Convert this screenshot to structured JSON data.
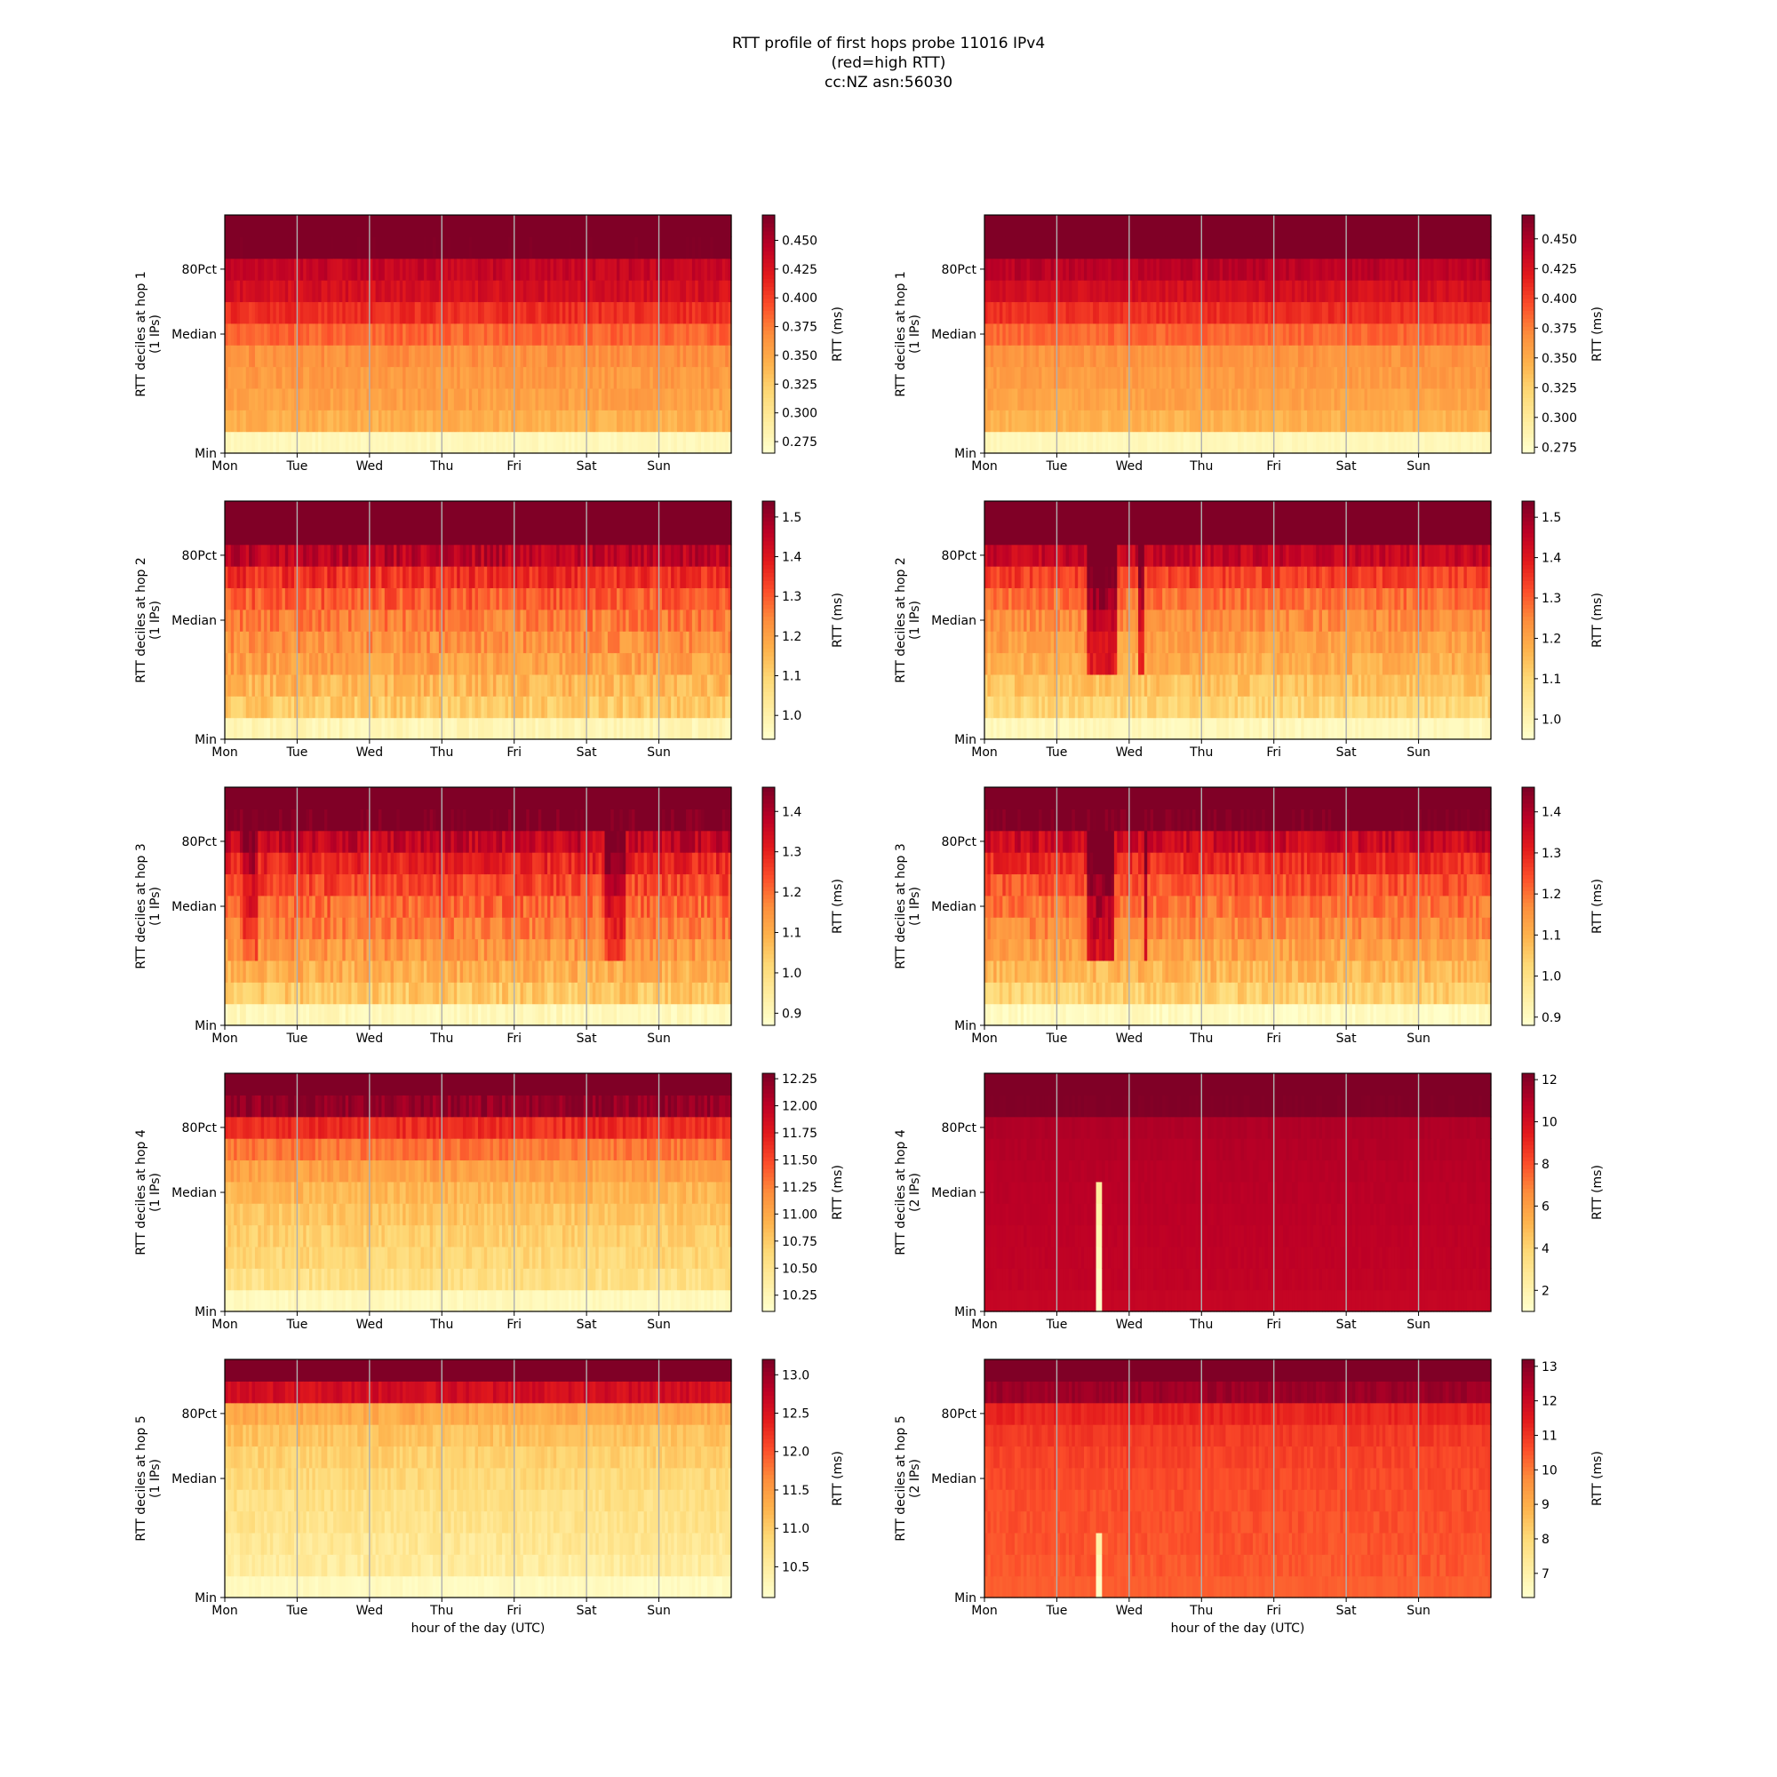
{
  "title": {
    "line1": "RTT profile of first hops probe 11016 IPv4",
    "line2": "(red=high RTT)",
    "line3": "cc:NZ asn:56030"
  },
  "colors": {
    "ylorrd": [
      "#ffffcc",
      "#ffeda0",
      "#fed976",
      "#feb24c",
      "#fd8d3c",
      "#fc4e2a",
      "#e31a1c",
      "#bd0026",
      "#800026"
    ],
    "gridline": "#b0b0b0",
    "frame": "#000000"
  },
  "chart_data": [
    {
      "type": "heatmap",
      "column": "left",
      "row": 0,
      "ylabel": "RTT deciles at hop 1",
      "ylabel2": "(1 IPs)",
      "xticks": [
        "Mon",
        "Tue",
        "Wed",
        "Thu",
        "Fri",
        "Sat",
        "Sun"
      ],
      "yticks": [
        "80Pct",
        "Median",
        "Min"
      ],
      "xlabel": "",
      "colorbar": {
        "label": "RTT (ms)",
        "vmin": 0.265,
        "vmax": 0.472,
        "ticks": [
          "0.275",
          "0.300",
          "0.325",
          "0.350",
          "0.375",
          "0.400",
          "0.425",
          "0.450"
        ]
      },
      "decile_rtt_ms": [
        0.275,
        0.345,
        0.355,
        0.36,
        0.365,
        0.385,
        0.41,
        0.43,
        0.44,
        0.48,
        0.49
      ],
      "noise": 0.01,
      "events": []
    },
    {
      "type": "heatmap",
      "column": "right",
      "row": 0,
      "ylabel": "RTT deciles at hop 1",
      "ylabel2": "(1 IPs)",
      "xticks": [
        "Mon",
        "Tue",
        "Wed",
        "Thu",
        "Fri",
        "Sat",
        "Sun"
      ],
      "yticks": [
        "80Pct",
        "Median",
        "Min"
      ],
      "xlabel": "",
      "colorbar": {
        "label": "RTT (ms)",
        "vmin": 0.27,
        "vmax": 0.47,
        "ticks": [
          "0.275",
          "0.300",
          "0.325",
          "0.350",
          "0.375",
          "0.400",
          "0.425",
          "0.450"
        ]
      },
      "decile_rtt_ms": [
        0.28,
        0.345,
        0.355,
        0.36,
        0.365,
        0.385,
        0.41,
        0.43,
        0.445,
        0.48,
        0.49
      ],
      "noise": 0.008,
      "events": []
    },
    {
      "type": "heatmap",
      "column": "left",
      "row": 1,
      "ylabel": "RTT deciles at hop 2",
      "ylabel2": "(1 IPs)",
      "xticks": [
        "Mon",
        "Tue",
        "Wed",
        "Thu",
        "Fri",
        "Sat",
        "Sun"
      ],
      "yticks": [
        "80Pct",
        "Median",
        "Min"
      ],
      "xlabel": "",
      "colorbar": {
        "label": "RTT (ms)",
        "vmin": 0.94,
        "vmax": 1.54,
        "ticks": [
          "1.0",
          "1.1",
          "1.2",
          "1.3",
          "1.4",
          "1.5"
        ]
      },
      "decile_rtt_ms": [
        0.98,
        1.12,
        1.16,
        1.2,
        1.23,
        1.26,
        1.3,
        1.36,
        1.46,
        1.6,
        1.62
      ],
      "noise": 0.05,
      "events": []
    },
    {
      "type": "heatmap",
      "column": "right",
      "row": 1,
      "ylabel": "RTT deciles at hop 2",
      "ylabel2": "(1 IPs)",
      "xticks": [
        "Mon",
        "Tue",
        "Wed",
        "Thu",
        "Fri",
        "Sat",
        "Sun"
      ],
      "yticks": [
        "80Pct",
        "Median",
        "Min"
      ],
      "xlabel": "",
      "colorbar": {
        "label": "RTT (ms)",
        "vmin": 0.95,
        "vmax": 1.54,
        "ticks": [
          "1.0",
          "1.1",
          "1.2",
          "1.3",
          "1.4",
          "1.5"
        ]
      },
      "decile_rtt_ms": [
        0.98,
        1.1,
        1.14,
        1.18,
        1.21,
        1.24,
        1.28,
        1.34,
        1.45,
        1.6,
        1.62
      ],
      "noise": 0.04,
      "events": [
        {
          "start": 0.2,
          "end": 0.26,
          "boost": 0.22
        },
        {
          "start": 0.3,
          "end": 0.31,
          "boost": 0.2
        }
      ]
    },
    {
      "type": "heatmap",
      "column": "left",
      "row": 2,
      "ylabel": "RTT deciles at hop 3",
      "ylabel2": "(1 IPs)",
      "xticks": [
        "Mon",
        "Tue",
        "Wed",
        "Thu",
        "Fri",
        "Sat",
        "Sun"
      ],
      "yticks": [
        "80Pct",
        "Median",
        "Min"
      ],
      "xlabel": "",
      "colorbar": {
        "label": "RTT (ms)",
        "vmin": 0.87,
        "vmax": 1.46,
        "ticks": [
          "0.9",
          "1.0",
          "1.1",
          "1.2",
          "1.3",
          "1.4"
        ]
      },
      "decile_rtt_ms": [
        0.9,
        1.05,
        1.1,
        1.14,
        1.18,
        1.21,
        1.25,
        1.3,
        1.37,
        1.48,
        1.52
      ],
      "noise": 0.05,
      "events": [
        {
          "start": 0.03,
          "end": 0.06,
          "boost": 0.1
        },
        {
          "start": 0.75,
          "end": 0.79,
          "boost": 0.12
        }
      ]
    },
    {
      "type": "heatmap",
      "column": "right",
      "row": 2,
      "ylabel": "RTT deciles at hop 3",
      "ylabel2": "(1 IPs)",
      "xticks": [
        "Mon",
        "Tue",
        "Wed",
        "Thu",
        "Fri",
        "Sat",
        "Sun"
      ],
      "yticks": [
        "80Pct",
        "Median",
        "Min"
      ],
      "xlabel": "",
      "colorbar": {
        "label": "RTT (ms)",
        "vmin": 0.88,
        "vmax": 1.46,
        "ticks": [
          "0.9",
          "1.0",
          "1.1",
          "1.2",
          "1.3",
          "1.4"
        ]
      },
      "decile_rtt_ms": [
        0.9,
        1.04,
        1.09,
        1.13,
        1.17,
        1.2,
        1.24,
        1.29,
        1.36,
        1.48,
        1.52
      ],
      "noise": 0.045,
      "events": [
        {
          "start": 0.2,
          "end": 0.25,
          "boost": 0.2
        },
        {
          "start": 0.31,
          "end": 0.32,
          "boost": 0.18
        }
      ]
    },
    {
      "type": "heatmap",
      "column": "left",
      "row": 3,
      "ylabel": "RTT deciles at hop 4",
      "ylabel2": "(1 IPs)",
      "xticks": [
        "Mon",
        "Tue",
        "Wed",
        "Thu",
        "Fri",
        "Sat",
        "Sun"
      ],
      "yticks": [
        "80Pct",
        "Median",
        "Min"
      ],
      "xlabel": "",
      "colorbar": {
        "label": "RTT (ms)",
        "vmin": 10.1,
        "vmax": 12.3,
        "ticks": [
          "10.25",
          "10.50",
          "10.75",
          "11.00",
          "11.25",
          "11.50",
          "11.75",
          "12.00",
          "12.25"
        ]
      },
      "decile_rtt_ms": [
        10.2,
        10.55,
        10.65,
        10.72,
        10.8,
        10.9,
        11.05,
        11.3,
        11.65,
        12.2,
        12.4
      ],
      "noise": 0.12,
      "events": []
    },
    {
      "type": "heatmap",
      "column": "right",
      "row": 3,
      "ylabel": "RTT deciles at hop 4",
      "ylabel2": "(2 IPs)",
      "xticks": [
        "Mon",
        "Tue",
        "Wed",
        "Thu",
        "Fri",
        "Sat",
        "Sun"
      ],
      "yticks": [
        "80Pct",
        "Median",
        "Min"
      ],
      "xlabel": "",
      "colorbar": {
        "label": "RTT (ms)",
        "vmin": 1.0,
        "vmax": 12.3,
        "ticks": [
          "2",
          "4",
          "6",
          "8",
          "10",
          "12"
        ]
      },
      "decile_rtt_ms": [
        10.6,
        10.75,
        10.8,
        10.85,
        10.9,
        10.95,
        11.0,
        11.1,
        11.2,
        12.3,
        12.5
      ],
      "noise": 0.1,
      "events": [],
      "drop": {
        "start": 0.215,
        "end": 0.228,
        "level": 1.0,
        "rows": 6
      }
    },
    {
      "type": "heatmap",
      "column": "left",
      "row": 4,
      "ylabel": "RTT deciles at hop 5",
      "ylabel2": "(1 IPs)",
      "xticks": [
        "Mon",
        "Tue",
        "Wed",
        "Thu",
        "Fri",
        "Sat",
        "Sun"
      ],
      "yticks": [
        "80Pct",
        "Median",
        "Min"
      ],
      "xlabel": "hour of the day (UTC)",
      "colorbar": {
        "label": "RTT (ms)",
        "vmin": 10.1,
        "vmax": 13.2,
        "ticks": [
          "10.5",
          "11.0",
          "11.5",
          "12.0",
          "12.5",
          "13.0"
        ]
      },
      "decile_rtt_ms": [
        10.2,
        10.5,
        10.6,
        10.68,
        10.75,
        10.85,
        10.95,
        11.1,
        11.35,
        12.6,
        13.3
      ],
      "noise": 0.15,
      "events": []
    },
    {
      "type": "heatmap",
      "column": "right",
      "row": 4,
      "ylabel": "RTT deciles at hop 5",
      "ylabel2": "(2 IPs)",
      "xticks": [
        "Mon",
        "Tue",
        "Wed",
        "Thu",
        "Fri",
        "Sat",
        "Sun"
      ],
      "yticks": [
        "80Pct",
        "Median",
        "Min"
      ],
      "xlabel": "hour of the day (UTC)",
      "colorbar": {
        "label": "RTT (ms)",
        "vmin": 6.3,
        "vmax": 13.2,
        "ticks": [
          "7",
          "8",
          "9",
          "10",
          "11",
          "12",
          "13"
        ]
      },
      "decile_rtt_ms": [
        10.4,
        10.5,
        10.55,
        10.6,
        10.65,
        10.7,
        10.8,
        10.95,
        11.3,
        12.8,
        13.3
      ],
      "noise": 0.2,
      "events": [],
      "drop": {
        "start": 0.215,
        "end": 0.228,
        "level": 6.4,
        "rows": 3
      }
    }
  ]
}
